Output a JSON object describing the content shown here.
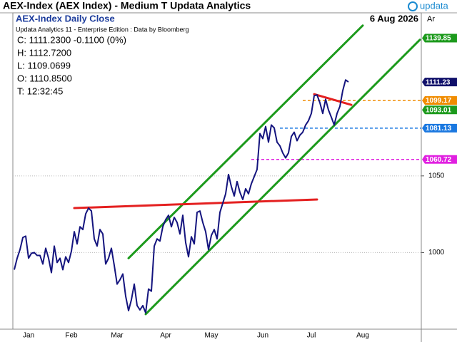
{
  "window_title": "AEX-Index (AEX Index) - Medium T  Updata Analytics",
  "logo": "updata",
  "chart_data": {
    "type": "line",
    "title": "AEX-Index Daily Close",
    "date": "6 Aug 2026",
    "axis_corner": "Ar",
    "info": [
      "Updata Analytics 11 - Enterprise Edition : Data by Bloomberg",
      "C: 1111.2300  -0.1100 (0%)",
      "H: 1112.7200",
      "L: 1109.0699",
      "O: 1110.8500",
      "T: 12:32:45"
    ],
    "categories": [
      null,
      null,
      null,
      null,
      null,
      "Jan",
      null,
      null,
      null,
      null,
      null,
      null,
      null,
      null,
      null,
      null,
      null,
      null,
      null,
      null,
      "Feb",
      null,
      null,
      null,
      null,
      null,
      null,
      null,
      null,
      null,
      null,
      null,
      null,
      null,
      null,
      null,
      "Mar",
      null,
      null,
      null,
      null,
      null,
      null,
      null,
      null,
      null,
      null,
      null,
      null,
      null,
      null,
      null,
      null,
      "Apr",
      null,
      null,
      null,
      null,
      null,
      null,
      null,
      null,
      null,
      null,
      null,
      null,
      null,
      null,
      null,
      "May",
      null,
      null,
      null,
      null,
      null,
      null,
      null,
      null,
      null,
      null,
      null,
      null,
      null,
      null,
      null,
      null,
      null,
      "Jun",
      null,
      null,
      null,
      null,
      null,
      null,
      null,
      null,
      null,
      null,
      null,
      null,
      null,
      null,
      null,
      null,
      "Jul",
      null,
      null,
      null,
      null,
      null,
      null,
      null,
      null,
      null,
      null,
      null,
      null,
      null,
      null,
      null,
      null,
      null,
      "Aug",
      null,
      null,
      null,
      null,
      null,
      null,
      null,
      null,
      null,
      null,
      null,
      null,
      null,
      null,
      null,
      null,
      null,
      null,
      null,
      null
    ],
    "series": [
      {
        "name": "AEX-Index",
        "color": "#14147e",
        "values": [
          988.8,
          996.3,
          1001.9,
          1009.8,
          1010.7,
          996.3,
          999.5,
          1000,
          998.1,
          998.1,
          992.5,
          1002.8,
          996.3,
          986.9,
          1004.2,
          993.5,
          996.3,
          988.8,
          997.2,
          993.5,
          1000.9,
          1013.6,
          1005.6,
          1016.8,
          1015.0,
          1025.2,
          1029.0,
          1027.1,
          1008.9,
          1004.2,
          1015.0,
          1012.1,
          992.5,
          996.3,
          1002.8,
          991.6,
          979.4,
          982.2,
          986.0,
          971.5,
          962.1,
          969.2,
          979.4,
          965.4,
          962.6,
          965.4,
          960.7,
          976.2,
          974.8,
          1004.2,
          1008.9,
          1007.5,
          1016.8,
          1021.5,
          1024.3,
          1016.8,
          1022.9,
          1019.6,
          1012.1,
          1024.3,
          1006.5,
          997.2,
          1010.3,
          1005.6,
          1026.2,
          1027.1,
          1019.6,
          1013.6,
          1001.9,
          1011.2,
          1015.0,
          1008.9,
          1026.2,
          1032.2,
          1038.3,
          1050.9,
          1043.0,
          1036.9,
          1046.3,
          1039.3,
          1034.6,
          1041.6,
          1038.3,
          1044.9,
          1049.5,
          1054.2,
          1077.6,
          1074.3,
          1082.2,
          1072.0,
          1083.2,
          1081.3,
          1072.0,
          1069.6,
          1065.0,
          1061.7,
          1065.0,
          1075.7,
          1078.5,
          1072.9,
          1076.6,
          1078.5,
          1083.2,
          1086.0,
          1090.7,
          1102.3,
          1102.8,
          1097.7,
          1090.7,
          1100.0,
          1093.0,
          1088.3,
          1083.2,
          1090.7,
          1095.3,
          1105.6,
          1112.6,
          1111.23,
          null,
          null,
          null,
          null,
          null,
          null,
          null,
          null,
          null,
          null,
          null,
          null,
          null,
          null,
          null,
          null,
          null,
          null,
          null,
          null,
          null,
          null,
          null,
          null,
          null
        ]
      }
    ],
    "ylim": [
      950,
      1148
    ],
    "yticks": [
      1000,
      1050
    ],
    "trendlines": [
      {
        "color": "#1c9a1c",
        "x": [
          40,
          122
        ],
        "values": [
          996.3,
          1148.1
        ]
      },
      {
        "color": "#1c9a1c",
        "x": [
          46,
          142
        ],
        "values": [
          959.8,
          1138.8
        ]
      },
      {
        "color": "#e42020",
        "x": [
          21,
          106
        ],
        "values": [
          1029.0,
          1034.6
        ]
      },
      {
        "color": "#e42020",
        "x": [
          105,
          118
        ],
        "values": [
          1103.3,
          1096.3
        ]
      }
    ],
    "levels": [
      {
        "value": 1099.17,
        "color": "#f08c00",
        "start": 101
      },
      {
        "value": 1081.13,
        "color": "#1a78e0",
        "start": 93
      },
      {
        "value": 1060.72,
        "color": "#e020e0",
        "start": 83
      }
    ],
    "price_labels": [
      {
        "value": 1139.85,
        "color": "#1c9a1c"
      },
      {
        "value": 1111.23,
        "color": "#10106a"
      },
      {
        "value": 1093.01,
        "color": "#1c9a1c"
      }
    ]
  }
}
